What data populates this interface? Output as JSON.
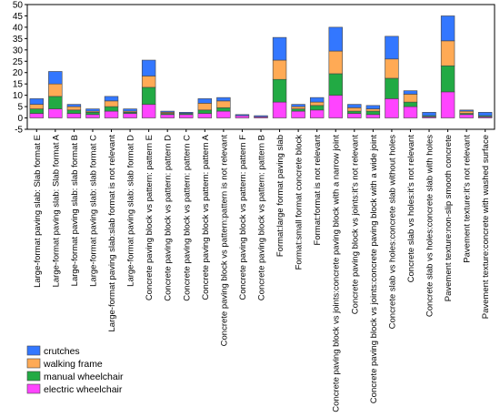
{
  "chart_data": {
    "type": "bar",
    "stacked": true,
    "title": "",
    "xlabel": "",
    "ylabel": "",
    "ylim": [
      -5,
      50
    ],
    "yticks": [
      -5,
      0,
      5,
      10,
      15,
      20,
      25,
      30,
      35,
      40,
      45,
      50
    ],
    "grid": false,
    "legend_position": "bottom-left",
    "categories": [
      "Large-format paving slab: Slab format E",
      "Large-format paving slab: Slab format A",
      "Large-format paving slab: slab format B",
      "Large-format paving slab: slab format C",
      "Large-format paving slab:slab format is not relevant",
      "Large-format paving slab: slab format D",
      "Concrete paving block vs pattern: pattern E",
      "Concrete paving block vs pattern: pattern D",
      "Concrete paving block vs pattern: pattern C",
      "Concrete paving block vs pattern: pattern A",
      "Concrete paving block vs pattern:pattern is not relevant",
      "Concrete paving block vs pattern: pattern F",
      "Concrete paving block vs pattern: pattern B",
      "Format:large format paving slab",
      "Format:small format concrete block",
      "Format:format is not relevant",
      "Concrete paving block vs joints:concrete paving block with a narrow joint",
      "Concrete paving block vs joints:it's not relevant",
      "Concrete paving block vs joints:concrete paving block with a wide joint",
      "Concrete slab vs holes:concrete slab without holes",
      "Concrete slab vs holes:it's not relevant",
      "Concrete slab vs holes:concrete slab with holes",
      "Pavement texture:non-slip smooth concrete",
      "Pavement texture:it's not relevant",
      "Pavement texture:concrete with washed surface"
    ],
    "series": [
      {
        "name": "electric wheelchair",
        "color": "#ff44ff",
        "values": [
          2,
          4,
          2,
          1.5,
          3,
          2,
          6,
          1.5,
          1.5,
          2,
          3,
          1,
          0.5,
          7,
          3,
          3.5,
          10,
          2,
          1.5,
          8.5,
          5,
          0.5,
          11.5,
          1.5,
          0.5
        ]
      },
      {
        "name": "manual wheelchair",
        "color": "#22aa44",
        "values": [
          2,
          5.5,
          1.5,
          1,
          2,
          0.5,
          7.5,
          0.5,
          0.5,
          1.5,
          1.5,
          0,
          0,
          10,
          1,
          2,
          9.5,
          1,
          1.5,
          9,
          2,
          0.5,
          11.5,
          0.5,
          0.5
        ]
      },
      {
        "name": "walking frame",
        "color": "#ffaa55",
        "values": [
          2,
          5.5,
          1.5,
          0.5,
          2.5,
          0.5,
          5,
          0.5,
          0,
          3,
          3,
          0,
          0,
          8.5,
          1,
          1.5,
          10,
          1.5,
          1,
          8.5,
          3.5,
          0,
          11,
          1,
          0
        ]
      },
      {
        "name": "crutches",
        "color": "#3377ff",
        "values": [
          2.5,
          5.5,
          1,
          1,
          2,
          1,
          7,
          0.5,
          0.5,
          2,
          1.5,
          0.5,
          0.5,
          10,
          1,
          2,
          10.5,
          1.5,
          1.5,
          10,
          1.5,
          1.5,
          11,
          0.5,
          1.5
        ]
      }
    ]
  }
}
